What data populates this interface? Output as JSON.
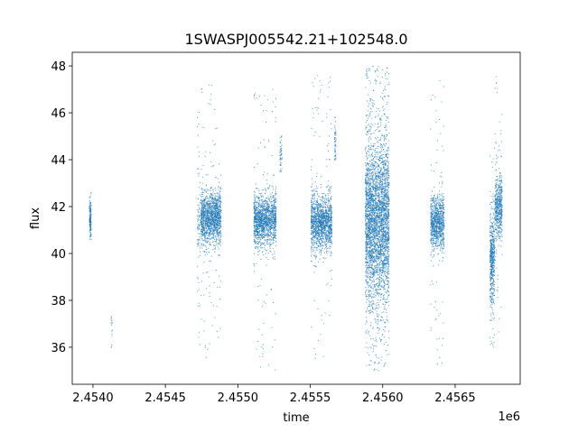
{
  "chart_data": {
    "type": "scatter",
    "title": "1SWASPJ005542.21+102548.0",
    "xlabel": "time",
    "ylabel": "flux",
    "x_offset_label": "1e6",
    "xlim": [
      2453857,
      2456949
    ],
    "ylim": [
      34.42,
      48.58
    ],
    "grid": false,
    "marker_color": "#1f77b4",
    "x_ticks": [
      {
        "value": 2454000,
        "label": "2.4540"
      },
      {
        "value": 2454500,
        "label": "2.4545"
      },
      {
        "value": 2455000,
        "label": "2.4550"
      },
      {
        "value": 2455500,
        "label": "2.4555"
      },
      {
        "value": 2456000,
        "label": "2.4560"
      },
      {
        "value": 2456500,
        "label": "2.4565"
      }
    ],
    "y_ticks": [
      {
        "value": 36,
        "label": "36"
      },
      {
        "value": 38,
        "label": "38"
      },
      {
        "value": 40,
        "label": "40"
      },
      {
        "value": 42,
        "label": "42"
      },
      {
        "value": 44,
        "label": "44"
      },
      {
        "value": 46,
        "label": "46"
      },
      {
        "value": 48,
        "label": "48"
      }
    ],
    "clusters": [
      {
        "t": [
          2453975,
          2453988
        ],
        "mean": 41.5,
        "sd": 0.45,
        "n": 150,
        "out": [
          40.6,
          42.6
        ],
        "n_out": 10
      },
      {
        "t": [
          2454125,
          2454135
        ],
        "mean": 36.6,
        "sd": 0.35,
        "n": 12,
        "out": [
          36,
          37.3
        ],
        "n_out": 4
      },
      {
        "t": [
          2454720,
          2454740
        ],
        "mean": 41.3,
        "sd": 0.8,
        "n": 60,
        "out": [
          36,
          46.7
        ],
        "n_out": 30
      },
      {
        "t": [
          2454745,
          2454885
        ],
        "mean": 41.5,
        "sd": 0.55,
        "n": 1400,
        "out": [
          35.5,
          47.2
        ],
        "n_out": 90
      },
      {
        "t": [
          2455110,
          2455265
        ],
        "mean": 41.4,
        "sd": 0.55,
        "n": 1400,
        "out": [
          35,
          47.8
        ],
        "n_out": 100
      },
      {
        "t": [
          2455290,
          2455305
        ],
        "mean": 44.2,
        "sd": 0.5,
        "n": 50,
        "out": [
          43.5,
          45
        ],
        "n_out": 5
      },
      {
        "t": [
          2455505,
          2455650
        ],
        "mean": 41.3,
        "sd": 0.6,
        "n": 1400,
        "out": [
          35.3,
          47.6
        ],
        "n_out": 90
      },
      {
        "t": [
          2455668,
          2455678
        ],
        "mean": 44.8,
        "sd": 0.55,
        "n": 50,
        "out": [
          44,
          45.8
        ],
        "n_out": 5
      },
      {
        "t": [
          2455880,
          2456045
        ],
        "mean": 41.4,
        "sd": 1.6,
        "n": 3200,
        "out": [
          35,
          48
        ],
        "n_out": 500
      },
      {
        "t": [
          2456330,
          2456425
        ],
        "mean": 41.3,
        "sd": 0.55,
        "n": 900,
        "out": [
          35.2,
          47.5
        ],
        "n_out": 70
      },
      {
        "t": [
          2456740,
          2456772
        ],
        "mean": 39.8,
        "sd": 1.0,
        "n": 500,
        "out": [
          36,
          44.5
        ],
        "n_out": 40
      },
      {
        "t": [
          2456775,
          2456825
        ],
        "mean": 42.0,
        "sd": 0.65,
        "n": 500,
        "out": [
          36.2,
          47.8
        ],
        "n_out": 50
      }
    ]
  }
}
